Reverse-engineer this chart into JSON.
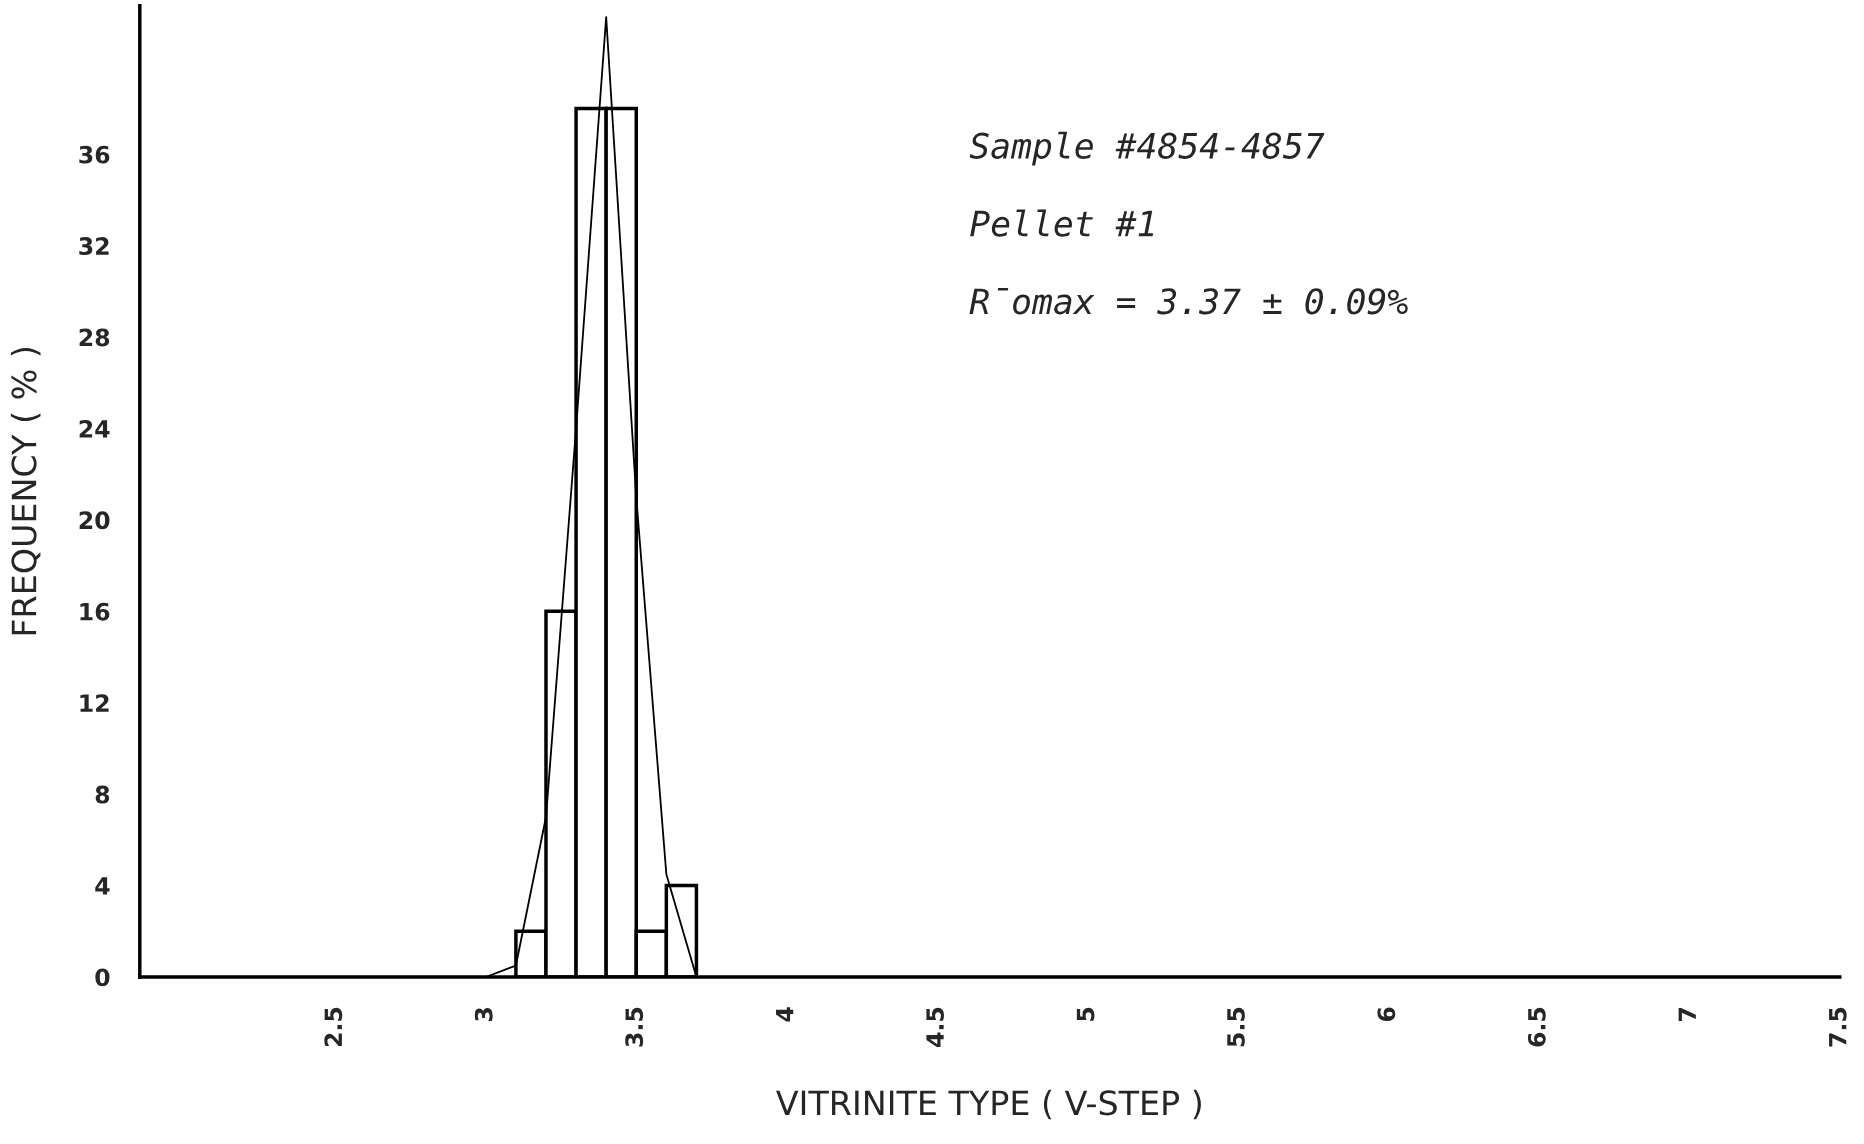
{
  "chart_data": {
    "type": "histogram",
    "xlabel": "VITRINITE TYPE ( V-STEP )",
    "ylabel": "FREQUENCY ( % )",
    "annotations": [
      "Sample #4854-4857",
      "Pellet #1",
      "R̄omax = 3.37 ± 0.09%"
    ],
    "bins": [
      3.1,
      3.2,
      3.3,
      3.4,
      3.5,
      3.6,
      3.7
    ],
    "values": [
      2,
      16,
      38,
      38,
      2,
      4
    ],
    "color": "#ffffff",
    "series": [
      {
        "type": "line",
        "color": "#000000",
        "x": [
          3.0,
          3.1,
          3.2,
          3.3,
          3.4,
          3.5,
          3.6,
          3.7
        ],
        "values": [
          0,
          0.5,
          7,
          24,
          42,
          21,
          4.5,
          0
        ]
      }
    ],
    "xlim": [
      1.85,
      7.5
    ],
    "ylim": [
      0,
      42.5
    ],
    "xticks": [
      2.5,
      3,
      3.5,
      4,
      4.5,
      5,
      5.5,
      6,
      6.5,
      7,
      7.5
    ],
    "yticks": [
      0,
      4,
      8,
      12,
      16,
      20,
      24,
      28,
      32,
      36
    ],
    "grid": false,
    "legend": false
  }
}
